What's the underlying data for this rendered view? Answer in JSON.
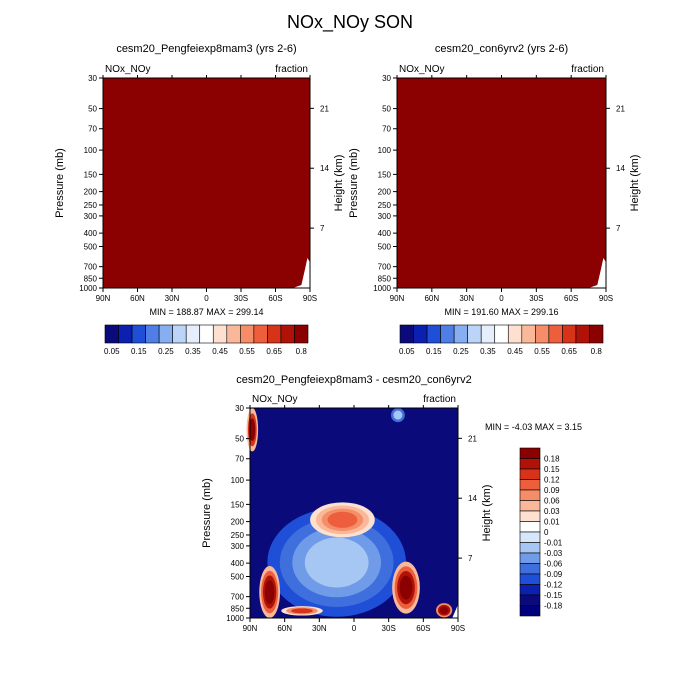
{
  "figure": {
    "title": "NOx_NOy SON"
  },
  "chart_data": [
    {
      "type": "heatmap",
      "title": "cesm20_Pengfeiexp8mam3 (yrs 2-6)",
      "left_label": "NOx_NOy",
      "units": "fraction",
      "xlabel": "",
      "ylabel": "Pressure (mb)",
      "right_ylabel": "Height (km)",
      "x_ticks": [
        "90N",
        "60N",
        "30N",
        "0",
        "30S",
        "60S",
        "90S"
      ],
      "x_range": [
        90,
        -90
      ],
      "y_ticks": [
        30,
        50,
        70,
        100,
        150,
        200,
        250,
        300,
        400,
        500,
        700,
        850,
        1000
      ],
      "y_range_mb": [
        30,
        1000
      ],
      "height_ticks_km": [
        7,
        14,
        21
      ],
      "field_summary": "Nearly uniform values near 0.8 (dark red) everywhere; small missing region near the surface in the southern high latitudes",
      "min": "188.87",
      "max": "299.14",
      "min_label": "MIN = ",
      "max_label": "MAX = ",
      "colorbar": {
        "labels": [
          "0.05",
          "0.15",
          "0.25",
          "0.35",
          "0.45",
          "0.55",
          "0.65",
          "0.8"
        ],
        "colors": [
          "#0a0a7a",
          "#0b1fb0",
          "#1f4fd6",
          "#4f7fe6",
          "#86aef0",
          "#bcd4f7",
          "#e6eefc",
          "#ffffff",
          "#fde0d0",
          "#f9b89a",
          "#f48d68",
          "#ec5e3c",
          "#d63319",
          "#b01208",
          "#8b0000"
        ]
      }
    },
    {
      "type": "heatmap",
      "title": "cesm20_con6yrv2 (yrs 2-6)",
      "left_label": "NOx_NOy",
      "units": "fraction",
      "xlabel": "",
      "ylabel": "Pressure (mb)",
      "right_ylabel": "Height (km)",
      "x_ticks": [
        "90N",
        "60N",
        "30N",
        "0",
        "30S",
        "60S",
        "90S"
      ],
      "x_range": [
        90,
        -90
      ],
      "y_ticks": [
        30,
        50,
        70,
        100,
        150,
        200,
        250,
        300,
        400,
        500,
        700,
        850,
        1000
      ],
      "y_range_mb": [
        30,
        1000
      ],
      "height_ticks_km": [
        7,
        14,
        21
      ],
      "field_summary": "Nearly uniform values near 0.8 (dark red) everywhere; small missing region near the surface in the southern high latitudes",
      "min": "191.60",
      "max": "299.16",
      "min_label": "MIN = ",
      "max_label": "MAX = ",
      "colorbar": {
        "labels": [
          "0.05",
          "0.15",
          "0.25",
          "0.35",
          "0.45",
          "0.55",
          "0.65",
          "0.8"
        ],
        "colors": [
          "#0a0a7a",
          "#0b1fb0",
          "#1f4fd6",
          "#4f7fe6",
          "#86aef0",
          "#bcd4f7",
          "#e6eefc",
          "#ffffff",
          "#fde0d0",
          "#f9b89a",
          "#f48d68",
          "#ec5e3c",
          "#d63319",
          "#b01208",
          "#8b0000"
        ]
      }
    },
    {
      "type": "heatmap",
      "title": "cesm20_Pengfeiexp8mam3 - cesm20_con6yrv2",
      "left_label": "NOx_NOy",
      "units": "fraction",
      "xlabel": "",
      "ylabel": "Pressure (mb)",
      "right_ylabel": "Height (km)",
      "x_ticks": [
        "90N",
        "60N",
        "30N",
        "0",
        "30S",
        "60S",
        "90S"
      ],
      "x_range": [
        90,
        -90
      ],
      "y_ticks": [
        30,
        50,
        70,
        100,
        150,
        200,
        250,
        300,
        400,
        500,
        700,
        850,
        1000
      ],
      "y_range_mb": [
        30,
        1000
      ],
      "height_ticks_km": [
        7,
        14,
        21
      ],
      "field_summary": "Mostly strongly negative (<= -0.18) background; positive anomalies (~0.1-0.18) near 90N at 30-50 mb, in the upper troposphere near 0-30N around 150-250 mb, near 40-50S from 400-850 mb, near 70-80N from 450-1000 mb, and near 80S close to the surface",
      "min": "-4.03",
      "max": "3.15",
      "min_label": "MIN = ",
      "max_label": "MAX = ",
      "colorbar": {
        "labels": [
          "0.18",
          "0.15",
          "0.12",
          "0.09",
          "0.06",
          "0.03",
          "0.01",
          "0",
          "-0.01",
          "-0.03",
          "-0.06",
          "-0.09",
          "-0.12",
          "-0.15",
          "-0.18"
        ],
        "colors": [
          "#8b0000",
          "#b01208",
          "#d63319",
          "#ec5e3c",
          "#f48d68",
          "#f9b89a",
          "#fde0d0",
          "#ffffff",
          "#d6e6fb",
          "#a6c6f3",
          "#6f9be8",
          "#3f6fdc",
          "#1f4fd6",
          "#0b1fb0",
          "#0a0a7a",
          "#00007f"
        ]
      }
    }
  ]
}
